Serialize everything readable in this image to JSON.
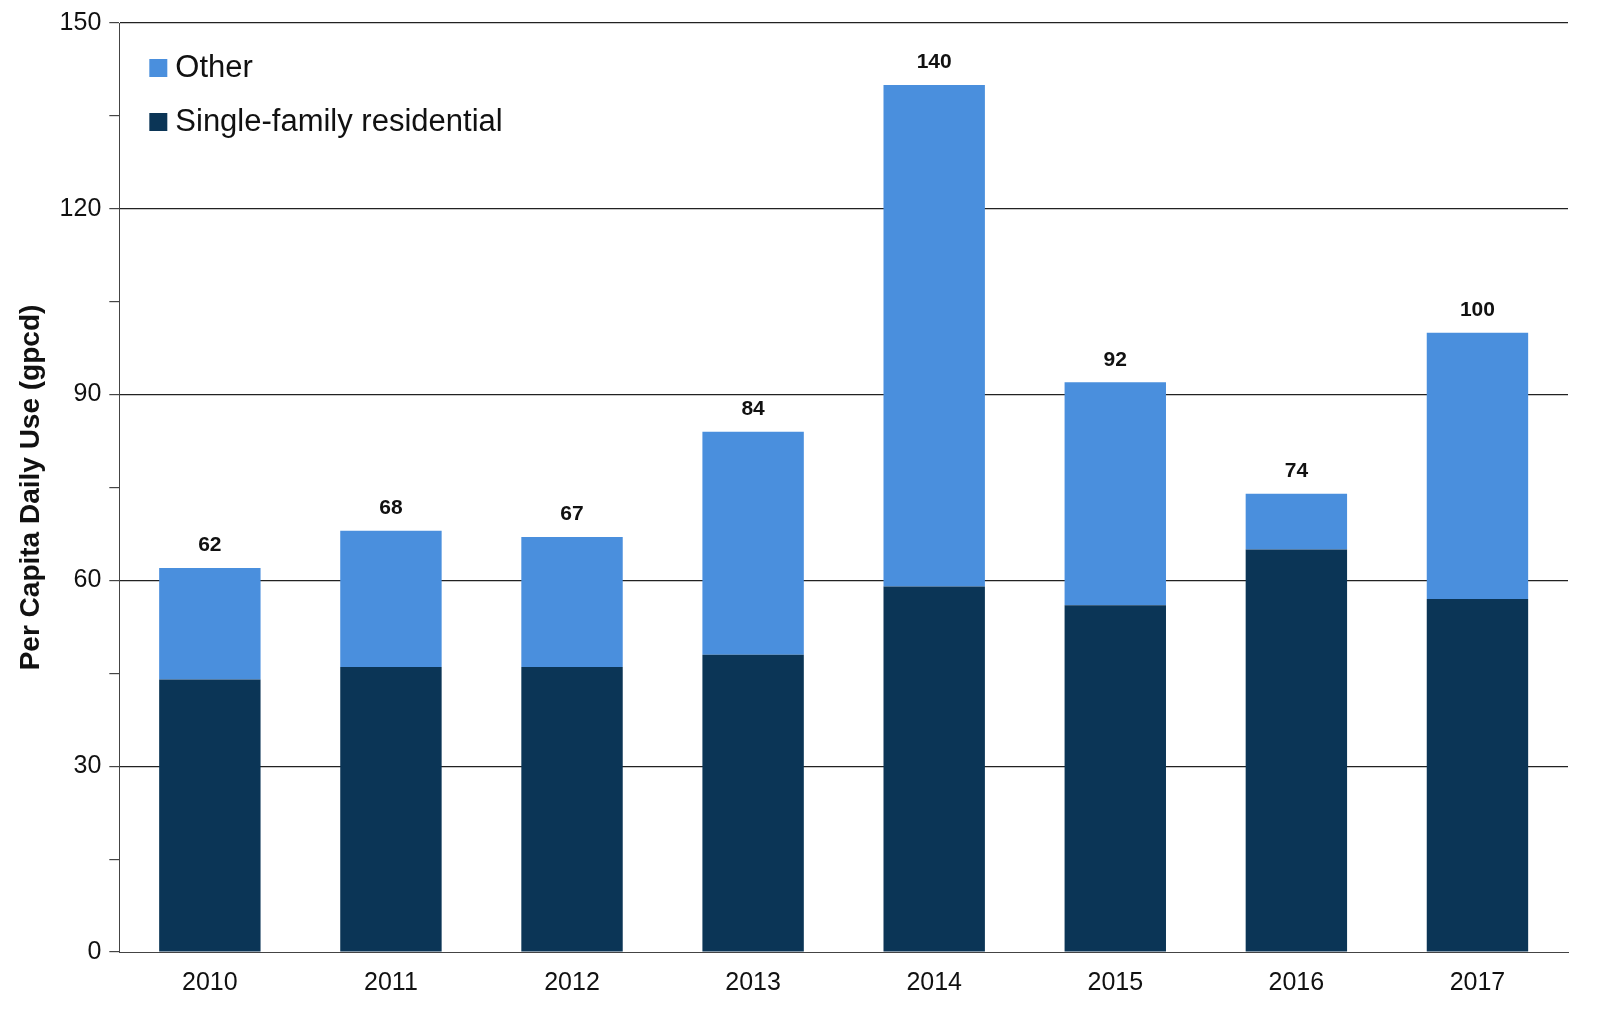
{
  "chart_data": {
    "type": "bar",
    "ylabel": "Per Capita Daily Use (gpcd)",
    "categories": [
      "2010",
      "2011",
      "2012",
      "2013",
      "2014",
      "2015",
      "2016",
      "2017"
    ],
    "stacked": true,
    "series": [
      {
        "name": "Single-family residential",
        "color": "#0b3556",
        "values": [
          44,
          46,
          46,
          48,
          59,
          56,
          65,
          57
        ]
      },
      {
        "name": "Other",
        "color": "#4a8fdd",
        "values": [
          18,
          22,
          21,
          36,
          81,
          36,
          9,
          43
        ]
      }
    ],
    "totals": [
      "62",
      "68",
      "67",
      "84",
      "140",
      "92",
      "74",
      "100"
    ],
    "ylim": [
      0,
      150
    ],
    "yticks": [
      0,
      {
        "value": 15,
        "label": null
      },
      30,
      {
        "value": 45,
        "label": null
      },
      60,
      {
        "value": 75,
        "label": null
      },
      90,
      {
        "value": 105,
        "label": null
      },
      120,
      {
        "value": 135,
        "label": null
      },
      150
    ],
    "grid": "y",
    "legend": "top left"
  }
}
